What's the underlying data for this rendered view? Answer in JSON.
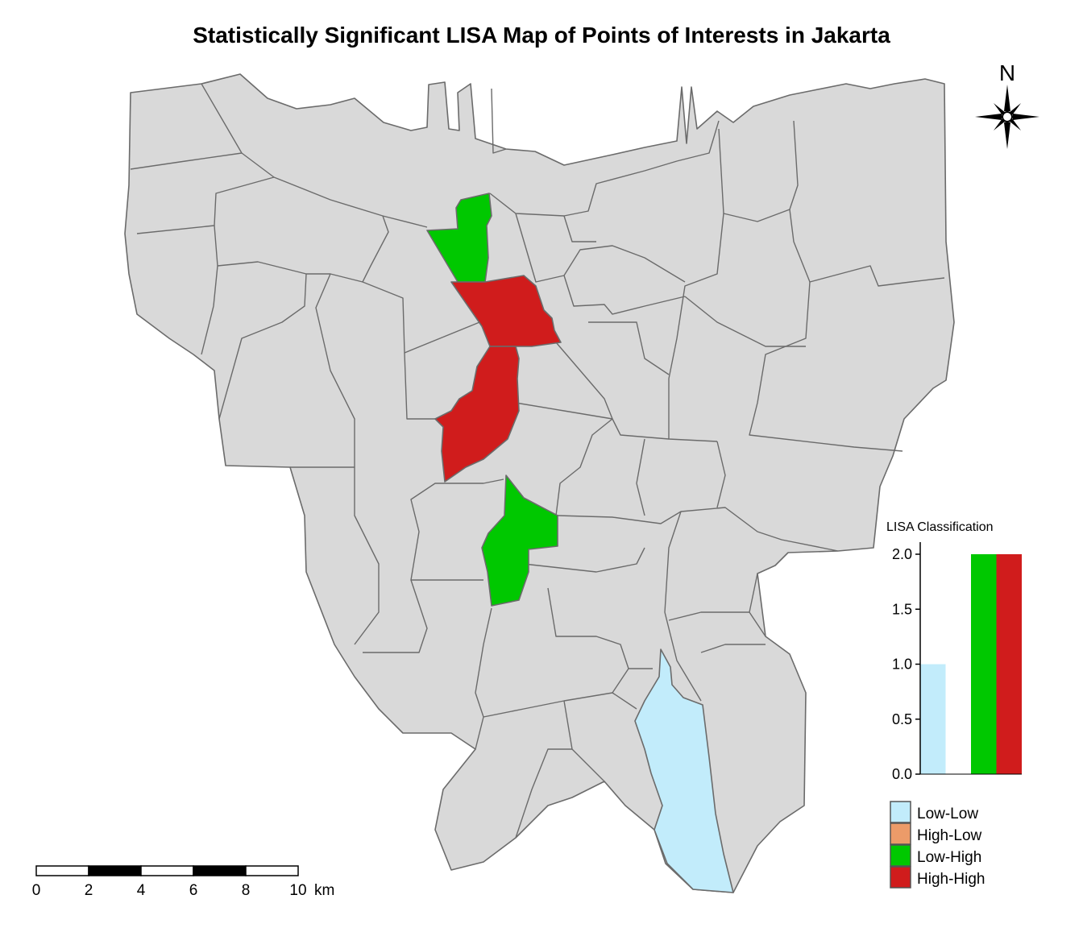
{
  "title": "Statistically Significant LISA Map of Points of Interests in Jakarta",
  "north_arrow": {
    "label": "N"
  },
  "scale_bar": {
    "ticks": [
      "0",
      "2",
      "4",
      "6",
      "8",
      "10"
    ],
    "unit": "km"
  },
  "colors": {
    "background_district": "#d9d9d9",
    "border": "#6b6b6b",
    "Low-Low": "#c2ecfb",
    "High-Low": "#ec9b69",
    "Low-High": "#00c800",
    "High-High": "#d01c1c"
  },
  "legend": {
    "title": "LISA Classification",
    "items": [
      {
        "label": "Low-Low",
        "color": "#c2ecfb"
      },
      {
        "label": "High-Low",
        "color": "#ec9b69"
      },
      {
        "label": "Low-High",
        "color": "#00c800"
      },
      {
        "label": "High-High",
        "color": "#d01c1c"
      }
    ]
  },
  "chart_data": {
    "type": "bar",
    "title": "LISA Classification",
    "categories": [
      "Low-Low",
      "High-Low",
      "Low-High",
      "High-High"
    ],
    "values": [
      1,
      0,
      2,
      2
    ],
    "colors": [
      "#c2ecfb",
      "#ec9b69",
      "#00c800",
      "#d01c1c"
    ],
    "ylim": [
      0,
      2
    ],
    "yticks": [
      "0.0",
      "0.5",
      "1.0",
      "1.5",
      "2.0"
    ]
  }
}
